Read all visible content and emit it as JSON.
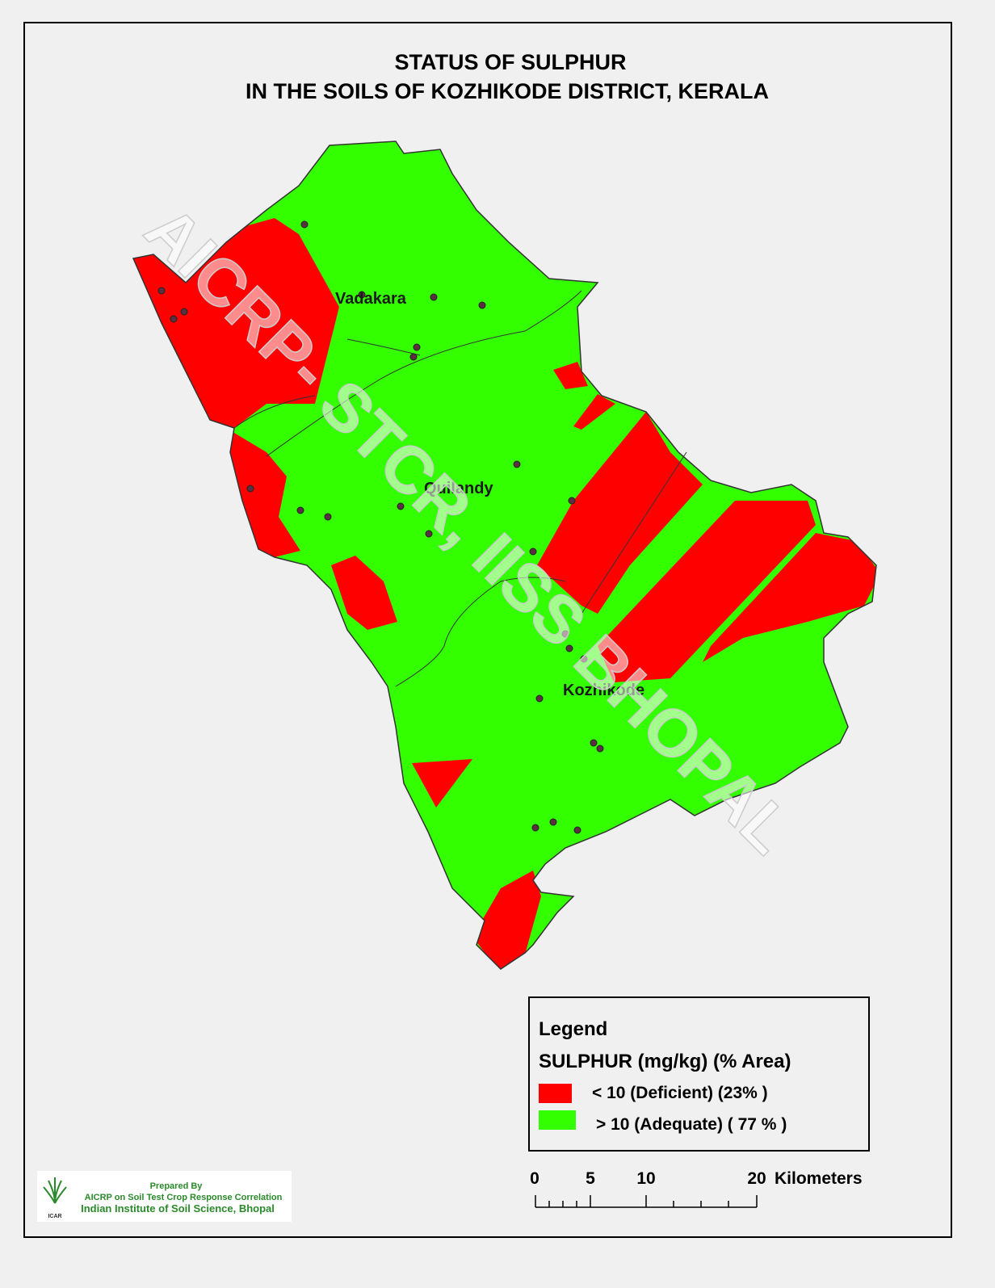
{
  "title": [
    "STATUS OF SULPHUR",
    "IN THE SOILS OF  KOZHIKODE  DISTRICT, KERALA"
  ],
  "watermark": "AICRP- STCR, IISS BHOPAL",
  "places": [
    "Vadakara",
    "Quilandy",
    "Kozhikode"
  ],
  "legend": {
    "title": "Legend",
    "heading": "SULPHUR  (mg/kg)   (% Area)",
    "items": [
      {
        "label": "< 10  (Deficient) (23% )",
        "color": "#ff0000"
      },
      {
        "label": "> 10   (Adequate) ( 77 % )",
        "color": "#33ff00"
      }
    ]
  },
  "scale_bar": {
    "labels": [
      "0",
      "5",
      "10",
      "20"
    ],
    "unit": "Kilometers"
  },
  "credit": {
    "logo": "ICAR",
    "lines": [
      "Prepared By",
      "AICRP on Soil Test Crop Response Correlation",
      "Indian Institute of Soil Science, Bhopal"
    ]
  }
}
